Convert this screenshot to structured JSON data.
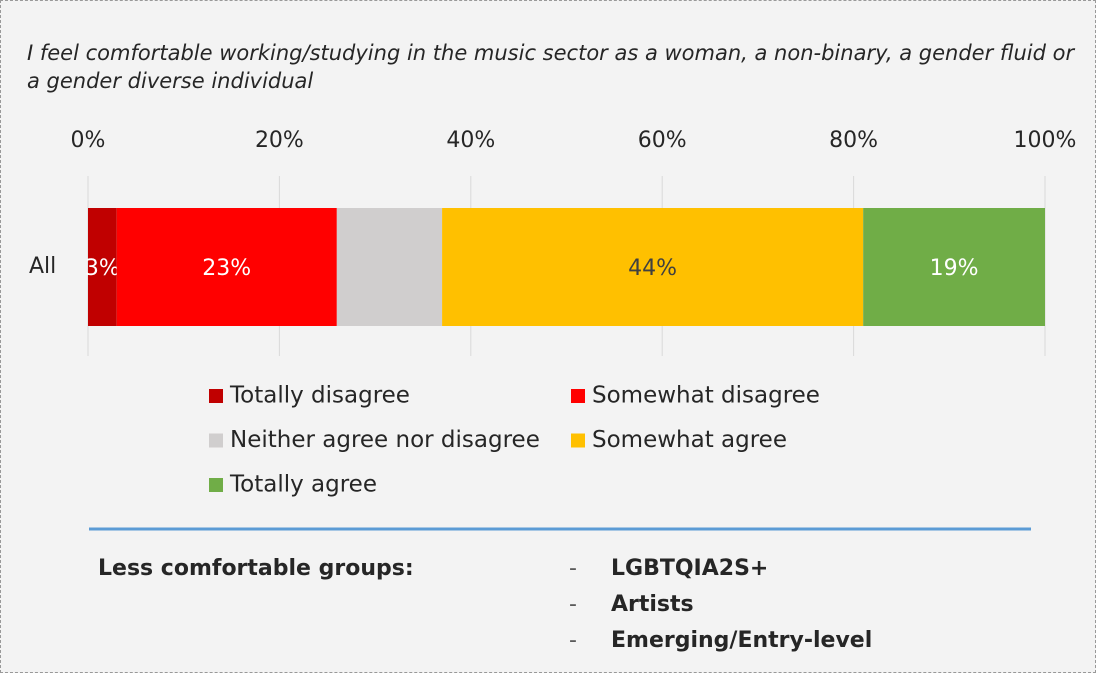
{
  "chart_data": {
    "type": "stacked-bar-horizontal",
    "title": "I feel comfortable working/studying in the music sector as a woman, a non-binary, a gender fluid or a gender diverse individual",
    "categories": [
      "All"
    ],
    "series": [
      {
        "name": "Totally disagree",
        "color": "#c00000",
        "label_color": "#ffffff",
        "values": [
          3
        ],
        "value_labels": [
          "3%"
        ]
      },
      {
        "name": "Somewhat disagree",
        "color": "#ff0000",
        "label_color": "#ffffff",
        "values": [
          23
        ],
        "value_labels": [
          "23%"
        ]
      },
      {
        "name": "Neither agree nor disagree",
        "color": "#d0cece",
        "label_color": "#ffffff",
        "values": [
          11
        ],
        "value_labels": [
          null
        ]
      },
      {
        "name": "Somewhat agree",
        "color": "#ffc000",
        "label_color": "#404040",
        "values": [
          44
        ],
        "value_labels": [
          "44%"
        ]
      },
      {
        "name": "Totally agree",
        "color": "#70ad47",
        "label_color": "#ffffff",
        "values": [
          19
        ],
        "value_labels": [
          "19%"
        ]
      }
    ],
    "xlim": [
      0,
      100
    ],
    "xticks": [
      {
        "value": 0,
        "label": "0%"
      },
      {
        "value": 20,
        "label": "20%"
      },
      {
        "value": 40,
        "label": "40%"
      },
      {
        "value": 60,
        "label": "60%"
      },
      {
        "value": 80,
        "label": "80%"
      },
      {
        "value": 100,
        "label": "100%"
      }
    ],
    "grid": true,
    "notes": {
      "heading": "Less comfortable groups:",
      "items": [
        "LGBTQIA2S+",
        "Artists",
        "Emerging/Entry-level"
      ]
    }
  }
}
